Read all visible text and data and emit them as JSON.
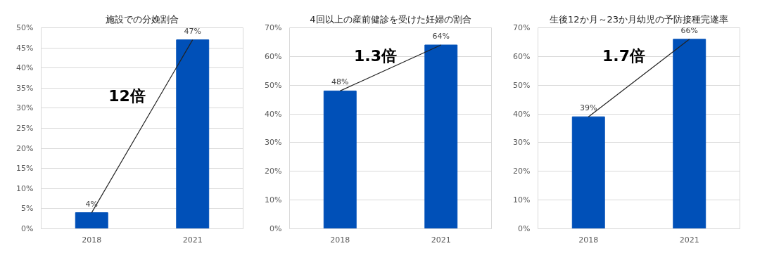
{
  "chart_data": [
    {
      "type": "bar",
      "title": "施設での分娩割合",
      "categories": [
        "2018",
        "2021"
      ],
      "series": [
        {
          "color": "#0050b8",
          "values": [
            4,
            47
          ],
          "value_labels": [
            "4%",
            "47%"
          ]
        },
        {
          "type": "line",
          "color": "#222222",
          "values": [
            4,
            47
          ]
        }
      ],
      "ylim": [
        0,
        50
      ],
      "yticks": [
        {
          "value": 0,
          "label": "0%"
        },
        {
          "value": 5,
          "label": "5%"
        },
        {
          "value": 10,
          "label": "10%"
        },
        {
          "value": 15,
          "label": "15%"
        },
        {
          "value": 20,
          "label": "20%"
        },
        {
          "value": 25,
          "label": "25%"
        },
        {
          "value": 30,
          "label": "30%"
        },
        {
          "value": 35,
          "label": "35%"
        },
        {
          "value": 40,
          "label": "40%"
        },
        {
          "value": 45,
          "label": "45%"
        },
        {
          "value": 50,
          "label": "50%"
        }
      ],
      "grid": "y",
      "annotations": [
        "12倍"
      ]
    },
    {
      "type": "bar",
      "title": "4回以上の産前健診を受けた妊婦の割合",
      "categories": [
        "2018",
        "2021"
      ],
      "series": [
        {
          "color": "#0050b8",
          "values": [
            48,
            64
          ],
          "value_labels": [
            "48%",
            "64%"
          ]
        },
        {
          "type": "line",
          "color": "#222222",
          "values": [
            48,
            64
          ]
        }
      ],
      "ylim": [
        0,
        70
      ],
      "yticks": [
        {
          "value": 0,
          "label": "0%"
        },
        {
          "value": 10,
          "label": "10%"
        },
        {
          "value": 20,
          "label": "20%"
        },
        {
          "value": 30,
          "label": "30%"
        },
        {
          "value": 40,
          "label": "40%"
        },
        {
          "value": 50,
          "label": "50%"
        },
        {
          "value": 60,
          "label": "60%"
        },
        {
          "value": 70,
          "label": "70%"
        }
      ],
      "grid": "y",
      "annotations": [
        "1.3倍"
      ]
    },
    {
      "type": "bar",
      "title": "生後12か月～23か月幼児の予防接種完遂率",
      "categories": [
        "2018",
        "2021"
      ],
      "series": [
        {
          "color": "#0050b8",
          "values": [
            39,
            66
          ],
          "value_labels": [
            "39%",
            "66%"
          ]
        },
        {
          "type": "line",
          "color": "#222222",
          "values": [
            39,
            66
          ]
        }
      ],
      "ylim": [
        0,
        70
      ],
      "yticks": [
        {
          "value": 0,
          "label": "0%"
        },
        {
          "value": 10,
          "label": "10%"
        },
        {
          "value": 20,
          "label": "20%"
        },
        {
          "value": 30,
          "label": "30%"
        },
        {
          "value": 40,
          "label": "40%"
        },
        {
          "value": 50,
          "label": "50%"
        },
        {
          "value": 60,
          "label": "60%"
        },
        {
          "value": 70,
          "label": "70%"
        }
      ],
      "grid": "y",
      "annotations": [
        "1.7倍"
      ]
    }
  ]
}
